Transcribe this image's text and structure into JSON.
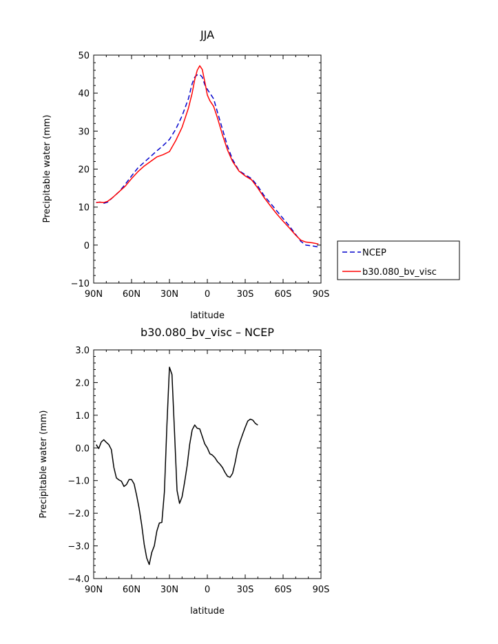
{
  "chart_data": [
    {
      "type": "line",
      "title": "JJA",
      "xlabel": "latitude",
      "ylabel": "Precipitable water (mm)",
      "xlim": [
        90,
        -90
      ],
      "ylim": [
        -10,
        50
      ],
      "x_note": "latitude in degrees, positive = North, negative = South",
      "xtick_values": [
        90,
        60,
        30,
        0,
        -30,
        -60,
        -90
      ],
      "xtick_labels": [
        "90N",
        "60N",
        "30N",
        "0",
        "30S",
        "60S",
        "90S"
      ],
      "ytick_values": [
        -10,
        0,
        10,
        20,
        30,
        40,
        50
      ],
      "ytick_labels": [
        "−10",
        "0",
        "10",
        "20",
        "30",
        "40",
        "50"
      ],
      "grid": false,
      "legend_position": "right",
      "series": [
        {
          "name": "NCEP",
          "color": "#0000cc",
          "style": "dashed",
          "points": [
            [
              88,
              11.2
            ],
            [
              85,
              11.3
            ],
            [
              82,
              11.0
            ],
            [
              79,
              11.3
            ],
            [
              75,
              12.5
            ],
            [
              70,
              14.0
            ],
            [
              65,
              16.0
            ],
            [
              60,
              18.2
            ],
            [
              55,
              20.3
            ],
            [
              50,
              21.8
            ],
            [
              45,
              23.3
            ],
            [
              40,
              24.8
            ],
            [
              35,
              26.2
            ],
            [
              30,
              27.8
            ],
            [
              25,
              30.5
            ],
            [
              20,
              34.0
            ],
            [
              15,
              38.5
            ],
            [
              12,
              42.5
            ],
            [
              10,
              44.2
            ],
            [
              8,
              44.8
            ],
            [
              6,
              44.9
            ],
            [
              4,
              44.2
            ],
            [
              2,
              42.2
            ],
            [
              0,
              41.0
            ],
            [
              -2,
              40.0
            ],
            [
              -5,
              38.5
            ],
            [
              -8,
              35.0
            ],
            [
              -12,
              30.5
            ],
            [
              -16,
              26.0
            ],
            [
              -20,
              22.5
            ],
            [
              -25,
              19.6
            ],
            [
              -30,
              18.5
            ],
            [
              -35,
              17.5
            ],
            [
              -40,
              15.5
            ],
            [
              -45,
              13.0
            ],
            [
              -50,
              11.0
            ],
            [
              -55,
              9.0
            ],
            [
              -60,
              7.0
            ],
            [
              -65,
              5.0
            ],
            [
              -70,
              2.8
            ],
            [
              -74,
              1.0
            ],
            [
              -78,
              0.0
            ],
            [
              -83,
              -0.2
            ],
            [
              -88,
              -0.5
            ]
          ]
        },
        {
          "name": "b30.080_bv_visc",
          "color": "#ff0000",
          "style": "solid",
          "points": [
            [
              88,
              11.2
            ],
            [
              85,
              11.3
            ],
            [
              82,
              11.2
            ],
            [
              79,
              11.5
            ],
            [
              75,
              12.5
            ],
            [
              70,
              14.0
            ],
            [
              65,
              15.5
            ],
            [
              60,
              17.5
            ],
            [
              55,
              19.3
            ],
            [
              50,
              20.8
            ],
            [
              45,
              22.0
            ],
            [
              40,
              23.2
            ],
            [
              35,
              23.8
            ],
            [
              30,
              24.6
            ],
            [
              25,
              27.5
            ],
            [
              20,
              31.0
            ],
            [
              15,
              36.0
            ],
            [
              12,
              40.0
            ],
            [
              10,
              43.5
            ],
            [
              8,
              46.0
            ],
            [
              6,
              47.2
            ],
            [
              4,
              46.2
            ],
            [
              2,
              43.0
            ],
            [
              0,
              39.5
            ],
            [
              -2,
              38.0
            ],
            [
              -5,
              36.5
            ],
            [
              -8,
              33.5
            ],
            [
              -12,
              29.0
            ],
            [
              -16,
              25.0
            ],
            [
              -20,
              22.0
            ],
            [
              -25,
              19.5
            ],
            [
              -30,
              18.2
            ],
            [
              -35,
              17.2
            ],
            [
              -40,
              15.0
            ],
            [
              -45,
              12.5
            ],
            [
              -50,
              10.3
            ],
            [
              -55,
              8.2
            ],
            [
              -60,
              6.3
            ],
            [
              -65,
              4.5
            ],
            [
              -70,
              2.6
            ],
            [
              -74,
              1.3
            ],
            [
              -78,
              0.8
            ],
            [
              -83,
              0.6
            ],
            [
              -88,
              0.3
            ]
          ]
        }
      ]
    },
    {
      "type": "line",
      "title": "b30.080_bv_visc – NCEP",
      "xlabel": "latitude",
      "ylabel": "Precipitable water (mm)",
      "xlim": [
        90,
        -90
      ],
      "ylim": [
        -4.0,
        3.0
      ],
      "x_note": "latitude in degrees, positive = North, negative = South",
      "xtick_values": [
        90,
        60,
        30,
        0,
        -30,
        -60,
        -90
      ],
      "xtick_labels": [
        "90N",
        "60N",
        "30N",
        "0",
        "30S",
        "60S",
        "90S"
      ],
      "ytick_values": [
        -4,
        -3,
        -2,
        -1,
        0,
        1,
        2,
        3
      ],
      "ytick_labels": [
        "−4.0",
        "−3.0",
        "−2.0",
        "−1.0",
        "0.0",
        "1.0",
        "2.0",
        "3.0"
      ],
      "grid": false,
      "series": [
        {
          "color": "#000000",
          "style": "solid",
          "points": [
            [
              88,
              0.1
            ],
            [
              86,
              -0.02
            ],
            [
              84,
              0.18
            ],
            [
              82,
              0.25
            ],
            [
              80,
              0.17
            ],
            [
              78,
              0.1
            ],
            [
              76,
              -0.05
            ],
            [
              74,
              -0.6
            ],
            [
              72,
              -0.92
            ],
            [
              70,
              -0.98
            ],
            [
              68,
              -1.02
            ],
            [
              66,
              -1.18
            ],
            [
              64,
              -1.12
            ],
            [
              62,
              -0.97
            ],
            [
              60,
              -0.97
            ],
            [
              58,
              -1.1
            ],
            [
              56,
              -1.45
            ],
            [
              54,
              -1.85
            ],
            [
              52,
              -2.35
            ],
            [
              50,
              -2.95
            ],
            [
              48,
              -3.37
            ],
            [
              46,
              -3.57
            ],
            [
              44,
              -3.2
            ],
            [
              42,
              -3.0
            ],
            [
              40,
              -2.55
            ],
            [
              38,
              -2.3
            ],
            [
              36,
              -2.28
            ],
            [
              34,
              -1.35
            ],
            [
              32,
              0.7
            ],
            [
              30,
              2.47
            ],
            [
              28,
              2.25
            ],
            [
              26,
              0.5
            ],
            [
              24,
              -1.3
            ],
            [
              22,
              -1.7
            ],
            [
              20,
              -1.5
            ],
            [
              18,
              -1.05
            ],
            [
              16,
              -0.55
            ],
            [
              14,
              0.1
            ],
            [
              12,
              0.55
            ],
            [
              10,
              0.7
            ],
            [
              8,
              0.6
            ],
            [
              6,
              0.58
            ],
            [
              4,
              0.35
            ],
            [
              2,
              0.12
            ],
            [
              0,
              0.0
            ],
            [
              -2,
              -0.18
            ],
            [
              -4,
              -0.22
            ],
            [
              -6,
              -0.3
            ],
            [
              -8,
              -0.42
            ],
            [
              -10,
              -0.5
            ],
            [
              -12,
              -0.6
            ],
            [
              -14,
              -0.75
            ],
            [
              -16,
              -0.87
            ],
            [
              -18,
              -0.9
            ],
            [
              -20,
              -0.78
            ],
            [
              -22,
              -0.45
            ],
            [
              -24,
              -0.05
            ],
            [
              -26,
              0.2
            ],
            [
              -28,
              0.42
            ],
            [
              -30,
              0.63
            ],
            [
              -32,
              0.82
            ],
            [
              -34,
              0.88
            ],
            [
              -36,
              0.85
            ],
            [
              -38,
              0.75
            ],
            [
              -40,
              0.7
            ]
          ]
        }
      ]
    }
  ]
}
